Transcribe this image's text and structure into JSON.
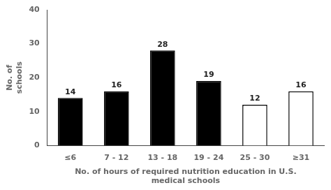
{
  "chart_data": {
    "type": "bar",
    "categories": [
      "≤6",
      "7 - 12",
      "13 - 18",
      "19 - 24",
      "25 - 30",
      "≥31"
    ],
    "values": [
      14,
      16,
      28,
      19,
      12,
      16
    ],
    "colors": [
      "black",
      "black",
      "black",
      "black",
      "white",
      "white"
    ],
    "xlabel": "No. of hours of required nutrition education in U.S.\nmedical schools",
    "ylabel": "No. of\nschools",
    "ylim": [
      0,
      40
    ],
    "yticks": [
      0,
      10,
      20,
      30,
      40
    ],
    "grid": false,
    "data_labels": true
  }
}
